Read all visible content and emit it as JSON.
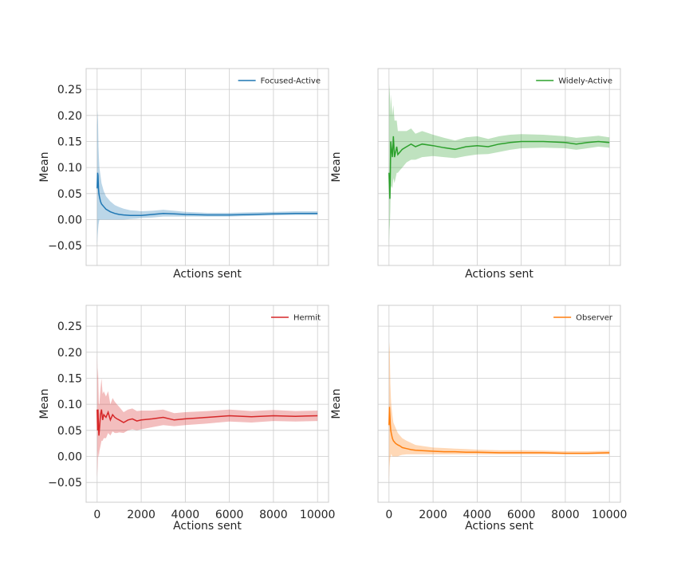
{
  "chart_data": [
    {
      "type": "line",
      "series": [
        {
          "name": "Focused-Active",
          "color": "#1f77b4",
          "x": [
            0,
            20,
            40,
            60,
            80,
            100,
            150,
            200,
            300,
            400,
            600,
            800,
            1000,
            1200,
            1500,
            1800,
            2000,
            2500,
            3000,
            3500,
            4000,
            5000,
            6000,
            7000,
            8000,
            9000,
            10000
          ],
          "y": [
            0.06,
            0.09,
            0.085,
            0.06,
            0.05,
            0.045,
            0.035,
            0.03,
            0.025,
            0.02,
            0.015,
            0.012,
            0.01,
            0.009,
            0.008,
            0.008,
            0.008,
            0.01,
            0.012,
            0.011,
            0.01,
            0.009,
            0.009,
            0.01,
            0.011,
            0.012,
            0.012
          ],
          "lower": [
            -0.05,
            -0.03,
            -0.02,
            -0.01,
            -0.005,
            0.0,
            0.0,
            0.0,
            0.0,
            0.0,
            0.0,
            0.0,
            0.0,
            0.0,
            0.001,
            0.002,
            0.003,
            0.004,
            0.006,
            0.006,
            0.006,
            0.006,
            0.006,
            0.007,
            0.008,
            0.009,
            0.009
          ],
          "upper": [
            0.18,
            0.21,
            0.19,
            0.14,
            0.12,
            0.1,
            0.085,
            0.07,
            0.055,
            0.045,
            0.035,
            0.028,
            0.024,
            0.021,
            0.018,
            0.017,
            0.016,
            0.017,
            0.019,
            0.017,
            0.015,
            0.013,
            0.013,
            0.014,
            0.015,
            0.016,
            0.016
          ]
        }
      ],
      "xlabel": "Actions sent",
      "ylabel": "Mean",
      "xlim": [
        -500,
        10500
      ],
      "ylim": [
        -0.088,
        0.29
      ],
      "yticks": [
        "−0.05",
        "0.00",
        "0.05",
        "0.10",
        "0.15",
        "0.20",
        "0.25"
      ],
      "xticks": [],
      "legend": "top-right"
    },
    {
      "type": "line",
      "series": [
        {
          "name": "Widely-Active",
          "color": "#2ca02c",
          "x": [
            0,
            20,
            40,
            60,
            80,
            100,
            150,
            200,
            250,
            300,
            350,
            400,
            500,
            600,
            800,
            1000,
            1200,
            1500,
            2000,
            2500,
            3000,
            3500,
            4000,
            4500,
            5000,
            5500,
            6000,
            7000,
            8000,
            8500,
            9000,
            9500,
            10000
          ],
          "y": [
            0.09,
            0.06,
            0.04,
            0.09,
            0.15,
            0.14,
            0.12,
            0.16,
            0.12,
            0.13,
            0.14,
            0.125,
            0.13,
            0.135,
            0.14,
            0.145,
            0.14,
            0.145,
            0.142,
            0.138,
            0.135,
            0.14,
            0.142,
            0.14,
            0.145,
            0.148,
            0.15,
            0.15,
            0.148,
            0.145,
            0.148,
            0.15,
            0.148
          ],
          "lower": [
            -0.05,
            -0.02,
            -0.01,
            0.02,
            0.06,
            0.065,
            0.06,
            0.08,
            0.07,
            0.08,
            0.09,
            0.09,
            0.095,
            0.1,
            0.11,
            0.115,
            0.115,
            0.12,
            0.122,
            0.12,
            0.118,
            0.122,
            0.125,
            0.126,
            0.13,
            0.134,
            0.137,
            0.138,
            0.137,
            0.134,
            0.137,
            0.14,
            0.138
          ],
          "upper": [
            0.23,
            0.26,
            0.24,
            0.2,
            0.24,
            0.23,
            0.2,
            0.22,
            0.19,
            0.19,
            0.19,
            0.17,
            0.17,
            0.17,
            0.17,
            0.175,
            0.165,
            0.17,
            0.163,
            0.157,
            0.152,
            0.158,
            0.16,
            0.155,
            0.16,
            0.163,
            0.164,
            0.163,
            0.16,
            0.157,
            0.159,
            0.161,
            0.158
          ]
        }
      ],
      "xlabel": "Actions sent",
      "ylabel": "Mean",
      "xlim": [
        -500,
        10500
      ],
      "ylim": [
        -0.088,
        0.29
      ],
      "yticks": [],
      "xticks": [],
      "legend": "top-right"
    },
    {
      "type": "line",
      "series": [
        {
          "name": "Hermit",
          "color": "#d62728",
          "x": [
            0,
            20,
            40,
            60,
            80,
            100,
            150,
            200,
            250,
            300,
            400,
            500,
            600,
            700,
            800,
            900,
            1000,
            1200,
            1400,
            1600,
            1800,
            2000,
            2500,
            3000,
            3500,
            4000,
            5000,
            6000,
            7000,
            8000,
            9000,
            10000
          ],
          "y": [
            0.09,
            0.05,
            0.09,
            0.06,
            0.04,
            0.05,
            0.08,
            0.09,
            0.07,
            0.08,
            0.075,
            0.085,
            0.07,
            0.08,
            0.075,
            0.072,
            0.07,
            0.065,
            0.07,
            0.072,
            0.068,
            0.07,
            0.072,
            0.075,
            0.07,
            0.072,
            0.075,
            0.078,
            0.076,
            0.078,
            0.077,
            0.078
          ],
          "lower": [
            -0.04,
            -0.02,
            0.01,
            0.0,
            0.0,
            0.01,
            0.02,
            0.03,
            0.03,
            0.035,
            0.035,
            0.045,
            0.04,
            0.048,
            0.045,
            0.045,
            0.046,
            0.045,
            0.05,
            0.052,
            0.05,
            0.052,
            0.056,
            0.06,
            0.058,
            0.06,
            0.063,
            0.067,
            0.065,
            0.068,
            0.067,
            0.068
          ],
          "upper": [
            0.2,
            0.15,
            0.17,
            0.13,
            0.1,
            0.1,
            0.13,
            0.15,
            0.12,
            0.125,
            0.115,
            0.125,
            0.1,
            0.112,
            0.105,
            0.1,
            0.095,
            0.085,
            0.09,
            0.092,
            0.087,
            0.088,
            0.088,
            0.09,
            0.083,
            0.085,
            0.087,
            0.09,
            0.087,
            0.089,
            0.087,
            0.088
          ]
        }
      ],
      "xlabel": "Actions sent",
      "ylabel": "Mean",
      "xlim": [
        -500,
        10500
      ],
      "ylim": [
        -0.088,
        0.29
      ],
      "yticks": [
        "−0.05",
        "0.00",
        "0.05",
        "0.10",
        "0.15",
        "0.20",
        "0.25"
      ],
      "xticks": [
        "0",
        "2000",
        "4000",
        "6000",
        "8000",
        "10000"
      ],
      "legend": "top-right"
    },
    {
      "type": "line",
      "series": [
        {
          "name": "Observer",
          "color": "#ff7f0e",
          "x": [
            0,
            20,
            40,
            60,
            80,
            100,
            150,
            200,
            300,
            400,
            500,
            600,
            800,
            1000,
            1200,
            1500,
            2000,
            2500,
            3000,
            3500,
            4000,
            5000,
            6000,
            7000,
            8000,
            9000,
            10000
          ],
          "y": [
            0.06,
            0.095,
            0.08,
            0.06,
            0.05,
            0.045,
            0.035,
            0.03,
            0.025,
            0.022,
            0.02,
            0.017,
            0.015,
            0.013,
            0.012,
            0.011,
            0.01,
            0.009,
            0.009,
            0.008,
            0.008,
            0.007,
            0.007,
            0.007,
            0.006,
            0.006,
            0.007
          ],
          "lower": [
            -0.05,
            -0.02,
            -0.01,
            0.0,
            0.0,
            0.005,
            0.0,
            0.0,
            0.0,
            0.0,
            0.002,
            0.003,
            0.004,
            0.004,
            0.004,
            0.004,
            0.004,
            0.004,
            0.004,
            0.004,
            0.004,
            0.004,
            0.004,
            0.004,
            0.004,
            0.004,
            0.004
          ],
          "upper": [
            0.2,
            0.22,
            0.19,
            0.14,
            0.12,
            0.1,
            0.08,
            0.065,
            0.055,
            0.045,
            0.04,
            0.035,
            0.03,
            0.026,
            0.022,
            0.02,
            0.017,
            0.016,
            0.015,
            0.014,
            0.013,
            0.012,
            0.012,
            0.011,
            0.01,
            0.01,
            0.011
          ]
        }
      ],
      "xlabel": "Actions sent",
      "ylabel": "Mean",
      "xlim": [
        -500,
        10500
      ],
      "ylim": [
        -0.088,
        0.29
      ],
      "yticks": [],
      "xticks": [
        "0",
        "2000",
        "4000",
        "6000",
        "8000",
        "10000"
      ],
      "legend": "top-right"
    }
  ]
}
